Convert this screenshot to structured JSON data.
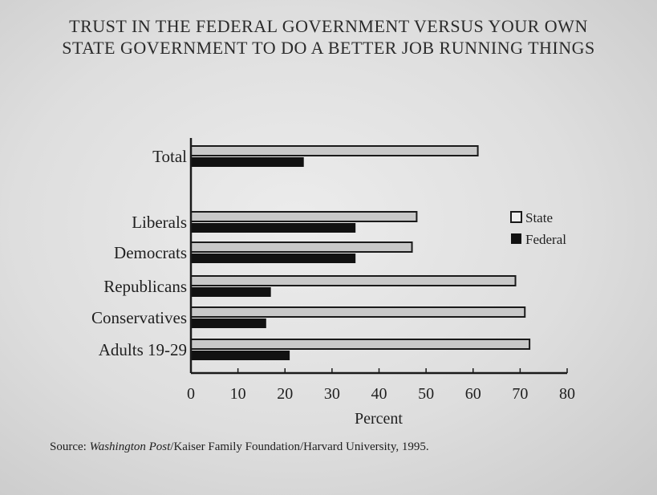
{
  "title": {
    "line1": "TRUST IN THE FEDERAL GOVERNMENT VERSUS YOUR OWN",
    "line2": "STATE GOVERNMENT TO DO A BETTER JOB RUNNING THINGS"
  },
  "source": {
    "prefix": "Source: ",
    "publication": "Washington Post",
    "rest": "/Kaiser Family Foundation/Harvard University, 1995."
  },
  "chart_data": {
    "type": "bar",
    "orientation": "horizontal",
    "title": "TRUST IN THE FEDERAL GOVERNMENT VERSUS YOUR OWN STATE GOVERNMENT TO DO A BETTER JOB RUNNING THINGS",
    "xlabel": "Percent",
    "ylabel": "",
    "xlim": [
      0,
      80
    ],
    "xticks": [
      0,
      10,
      20,
      30,
      40,
      50,
      60,
      70,
      80
    ],
    "grid": false,
    "legend_position": "right",
    "categories": [
      "Total",
      "Liberals",
      "Democrats",
      "Republicans",
      "Conservatives",
      "Adults 19-29"
    ],
    "series": [
      {
        "name": "State",
        "color": "#c8c8c8",
        "values": [
          61,
          48,
          47,
          69,
          71,
          72
        ]
      },
      {
        "name": "Federal",
        "color": "#111111",
        "values": [
          24,
          35,
          35,
          17,
          16,
          21
        ]
      }
    ]
  }
}
